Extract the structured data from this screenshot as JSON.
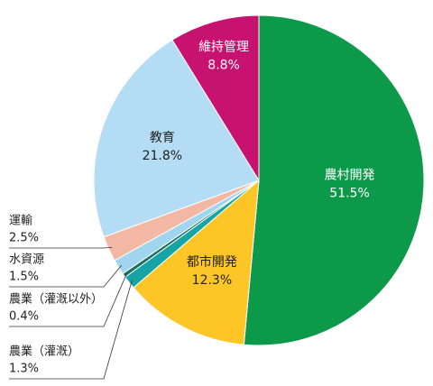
{
  "chart_data": {
    "type": "pie",
    "categories": [
      "農村開発",
      "都市開発",
      "農業（灌漑）",
      "農業（灌漑以外）",
      "水資源",
      "運輸",
      "教育",
      "維持管理"
    ],
    "values": [
      51.5,
      12.3,
      1.3,
      0.4,
      1.5,
      2.5,
      21.8,
      8.8
    ],
    "value_labels": [
      "51.5%",
      "12.3%",
      "1.3%",
      "0.4%",
      "1.5%",
      "2.5%",
      "21.8%",
      "8.8%"
    ],
    "colors": [
      "#0c9a4a",
      "#fdc526",
      "#16a4a6",
      "#1e6f5c",
      "#9fd5ef",
      "#f3b8a3",
      "#b4dcf4",
      "#c8126f"
    ]
  }
}
